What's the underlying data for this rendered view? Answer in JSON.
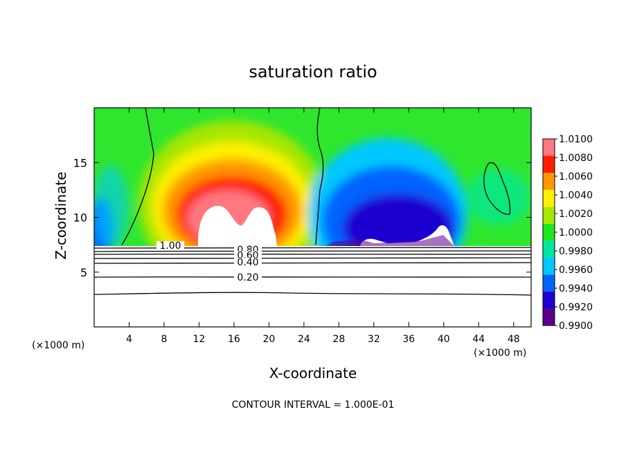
{
  "chart_data": {
    "type": "heatmap",
    "title": "saturation ratio",
    "xlabel": "X-coordinate",
    "ylabel": "Z-coordinate",
    "x_unit": "(×1000 m)",
    "y_unit": "(×1000 m)",
    "xlim": [
      0,
      50
    ],
    "ylim": [
      0,
      20
    ],
    "x_ticks": [
      4,
      8,
      12,
      16,
      20,
      24,
      28,
      32,
      36,
      40,
      44,
      48
    ],
    "y_ticks": [
      5,
      10,
      15
    ],
    "colorbar": {
      "levels": [
        0.99,
        0.992,
        0.994,
        0.996,
        0.998,
        1.0,
        1.002,
        1.004,
        1.006,
        1.008,
        1.01
      ],
      "labels": [
        "0.9900",
        "0.9920",
        "0.9940",
        "0.9960",
        "0.9980",
        "1.0000",
        "1.0020",
        "1.0040",
        "1.0060",
        "1.0080",
        "1.0100"
      ],
      "colors": [
        "#5a008c",
        "#1e00d2",
        "#0064ff",
        "#00c8ff",
        "#00e6a0",
        "#1ee61e",
        "#a8e600",
        "#fff000",
        "#ff9600",
        "#ff1e00",
        "#ff7880"
      ]
    },
    "contour_labels": [
      "1.00",
      "0.80",
      "0.60",
      "0.40",
      "0.20"
    ],
    "contour_interval_text": "CONTOUR INTERVAL = 1.000E-01",
    "grid": false,
    "legend": "right colorbar"
  }
}
